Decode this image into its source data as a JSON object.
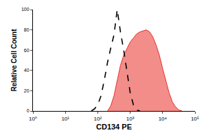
{
  "chart_data": {
    "type": "line",
    "x_label": "CD134 PE",
    "y_label": "Relative Cell Count",
    "log": "x",
    "grid": false,
    "x": [
      63,
      79,
      100,
      126,
      158,
      200,
      251,
      316,
      398,
      501,
      631,
      794,
      1000,
      1259,
      1585,
      1995,
      2512,
      3162,
      3981,
      5012,
      6310,
      7943,
      10000,
      12589,
      15849,
      19953,
      25119,
      31623,
      39811,
      50119
    ],
    "series": [
      {
        "type": "area",
        "color": "#e8302a",
        "line_style": "solid",
        "values": [
          null,
          null,
          null,
          null,
          null,
          0,
          5,
          15,
          30,
          45,
          55,
          62,
          68,
          72,
          76,
          78,
          79,
          80,
          78,
          73,
          65,
          55,
          42,
          30,
          18,
          9,
          4,
          1,
          0,
          null
        ]
      },
      {
        "type": "line",
        "color": "#000000",
        "line_style": "dashed",
        "values": [
          0,
          2,
          6,
          15,
          30,
          48,
          62,
          75,
          100,
          78,
          60,
          38,
          18,
          6,
          1,
          0,
          null,
          null,
          null,
          null,
          null,
          null,
          null,
          null,
          null,
          null,
          null,
          null,
          null,
          null
        ]
      }
    ],
    "xlim": [
      1,
      100000
    ],
    "xticks": [
      {
        "value": 1,
        "label": "10⁰"
      },
      {
        "value": 10,
        "label": "10¹"
      },
      {
        "value": 100,
        "label": "10²"
      },
      {
        "value": 1000,
        "label": "10³"
      },
      {
        "value": 10000,
        "label": "10⁴"
      },
      {
        "value": 100000,
        "label": "10⁵"
      }
    ],
    "ylim": [
      0,
      100
    ],
    "yticks": [
      0,
      20,
      40,
      60,
      80,
      100
    ]
  }
}
